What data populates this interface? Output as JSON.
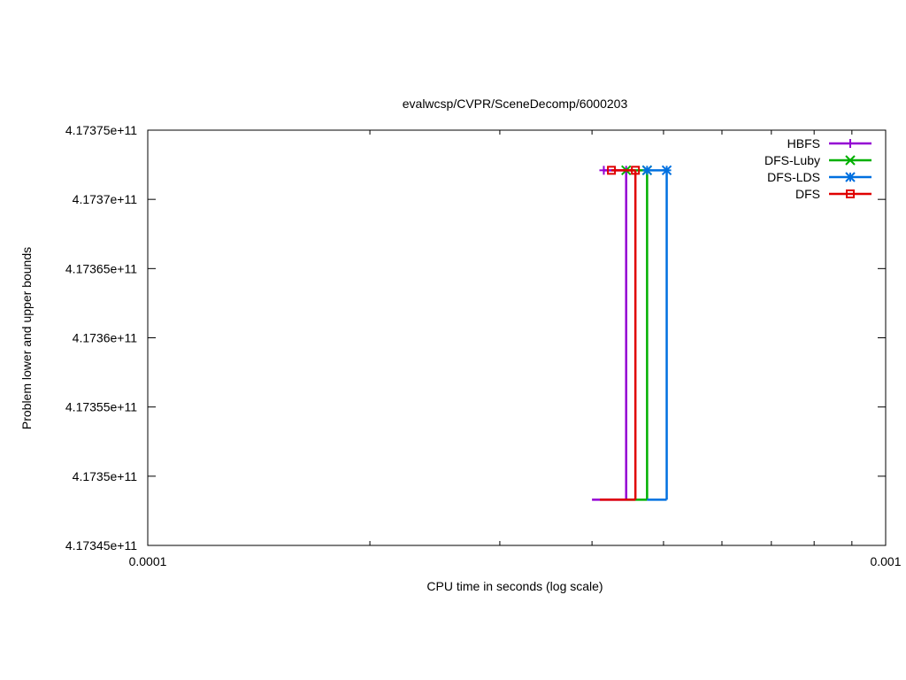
{
  "chart_data": {
    "type": "line",
    "title": "evalwcsp/CVPR/SceneDecomp/6000203",
    "xlabel": "CPU time in seconds (log scale)",
    "ylabel": "Problem lower and upper bounds",
    "x_scale": "log",
    "xlim": [
      0.0001,
      0.001
    ],
    "ylim": [
      417345000000,
      417375000000
    ],
    "x_ticks": [
      {
        "value": 0.0001,
        "label": "0.0001"
      },
      {
        "value": 0.001,
        "label": "0.001"
      }
    ],
    "y_ticks": [
      {
        "value": 417345000000,
        "label": "4.17345e+11"
      },
      {
        "value": 417350000000,
        "label": "4.1735e+11"
      },
      {
        "value": 417355000000,
        "label": "4.17355e+11"
      },
      {
        "value": 417360000000,
        "label": "4.1736e+11"
      },
      {
        "value": 417365000000,
        "label": "4.17365e+11"
      },
      {
        "value": 417370000000,
        "label": "4.1737e+11"
      },
      {
        "value": 417375000000,
        "label": "4.17375e+11"
      }
    ],
    "grid": false,
    "legend_position": "top-right",
    "series": [
      {
        "name": "HBFS",
        "color": "#9400d3",
        "marker": "plus",
        "upper": [
          {
            "x": 0.000415,
            "y": 417372100000
          },
          {
            "x": 0.000445,
            "y": 417372100000
          }
        ],
        "lower": [
          {
            "x": 0.0004,
            "y": 417348300000
          },
          {
            "x": 0.000445,
            "y": 417348300000
          }
        ],
        "drop_x": 0.000445
      },
      {
        "name": "DFS-Luby",
        "color": "#00b000",
        "marker": "cross",
        "upper": [
          {
            "x": 0.000445,
            "y": 417372100000
          },
          {
            "x": 0.000475,
            "y": 417372100000
          }
        ],
        "lower": [
          {
            "x": 0.000445,
            "y": 417348300000
          },
          {
            "x": 0.000475,
            "y": 417348300000
          }
        ],
        "drop_x": 0.000475
      },
      {
        "name": "DFS-LDS",
        "color": "#0070e0",
        "marker": "star",
        "upper": [
          {
            "x": 0.000475,
            "y": 417372100000
          },
          {
            "x": 0.000505,
            "y": 417372100000
          }
        ],
        "lower": [
          {
            "x": 0.000475,
            "y": 417348300000
          },
          {
            "x": 0.000505,
            "y": 417348300000
          }
        ],
        "drop_x": 0.000505
      },
      {
        "name": "DFS",
        "color": "#e00000",
        "marker": "square",
        "upper": [
          {
            "x": 0.000425,
            "y": 417372100000
          },
          {
            "x": 0.000458,
            "y": 417372100000
          }
        ],
        "lower": [
          {
            "x": 0.00041,
            "y": 417348300000
          },
          {
            "x": 0.000458,
            "y": 417348300000
          }
        ],
        "drop_x": 0.000458
      }
    ]
  }
}
